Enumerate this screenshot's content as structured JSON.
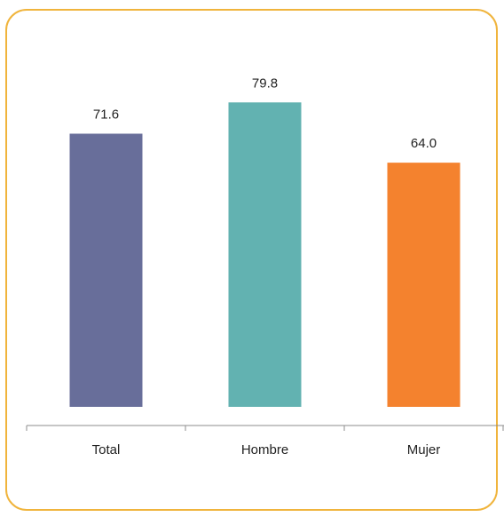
{
  "chart_data": {
    "type": "bar",
    "categories": [
      "Total",
      "Hombre",
      "Mujer"
    ],
    "values": [
      71.6,
      79.8,
      64.0
    ],
    "value_labels": [
      "71.6",
      "79.8",
      "64.0"
    ],
    "title": "",
    "xlabel": "",
    "ylabel": "",
    "ylim": [
      0,
      95
    ],
    "grid": false,
    "legend": "none",
    "colors": [
      "#686e9a",
      "#62b2b1",
      "#f4822e"
    ],
    "axis_color": "#8c8c8c",
    "frame_color": "#f0b43c"
  }
}
